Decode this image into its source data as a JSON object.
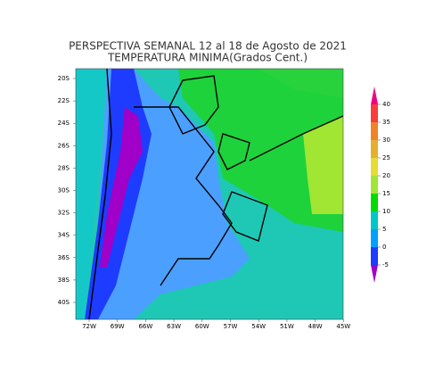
{
  "title": [
    "PERSPECTIVA SEMANAL  12 al 18 de Agosto de 2021",
    "TEMPERATURA MINIMA(Grados Cent.)"
  ],
  "map": {
    "lat_labels": [
      "20S",
      "22S",
      "24S",
      "26S",
      "28S",
      "30S",
      "32S",
      "34S",
      "36S",
      "38S",
      "40S"
    ],
    "lon_labels": [
      "72W",
      "69W",
      "66W",
      "63W",
      "60W",
      "57W",
      "54W",
      "51W",
      "48W",
      "45W"
    ]
  },
  "colorbar": {
    "levels": [
      -5,
      0,
      5,
      10,
      15,
      20,
      25,
      30,
      35,
      40
    ],
    "colors": [
      "#a000c8",
      "#1e3cff",
      "#00a0ff",
      "#00c8c8",
      "#00dc00",
      "#a0e632",
      "#e6dc32",
      "#e6af2d",
      "#f08228",
      "#fa3c3c",
      "#f00082"
    ]
  }
}
